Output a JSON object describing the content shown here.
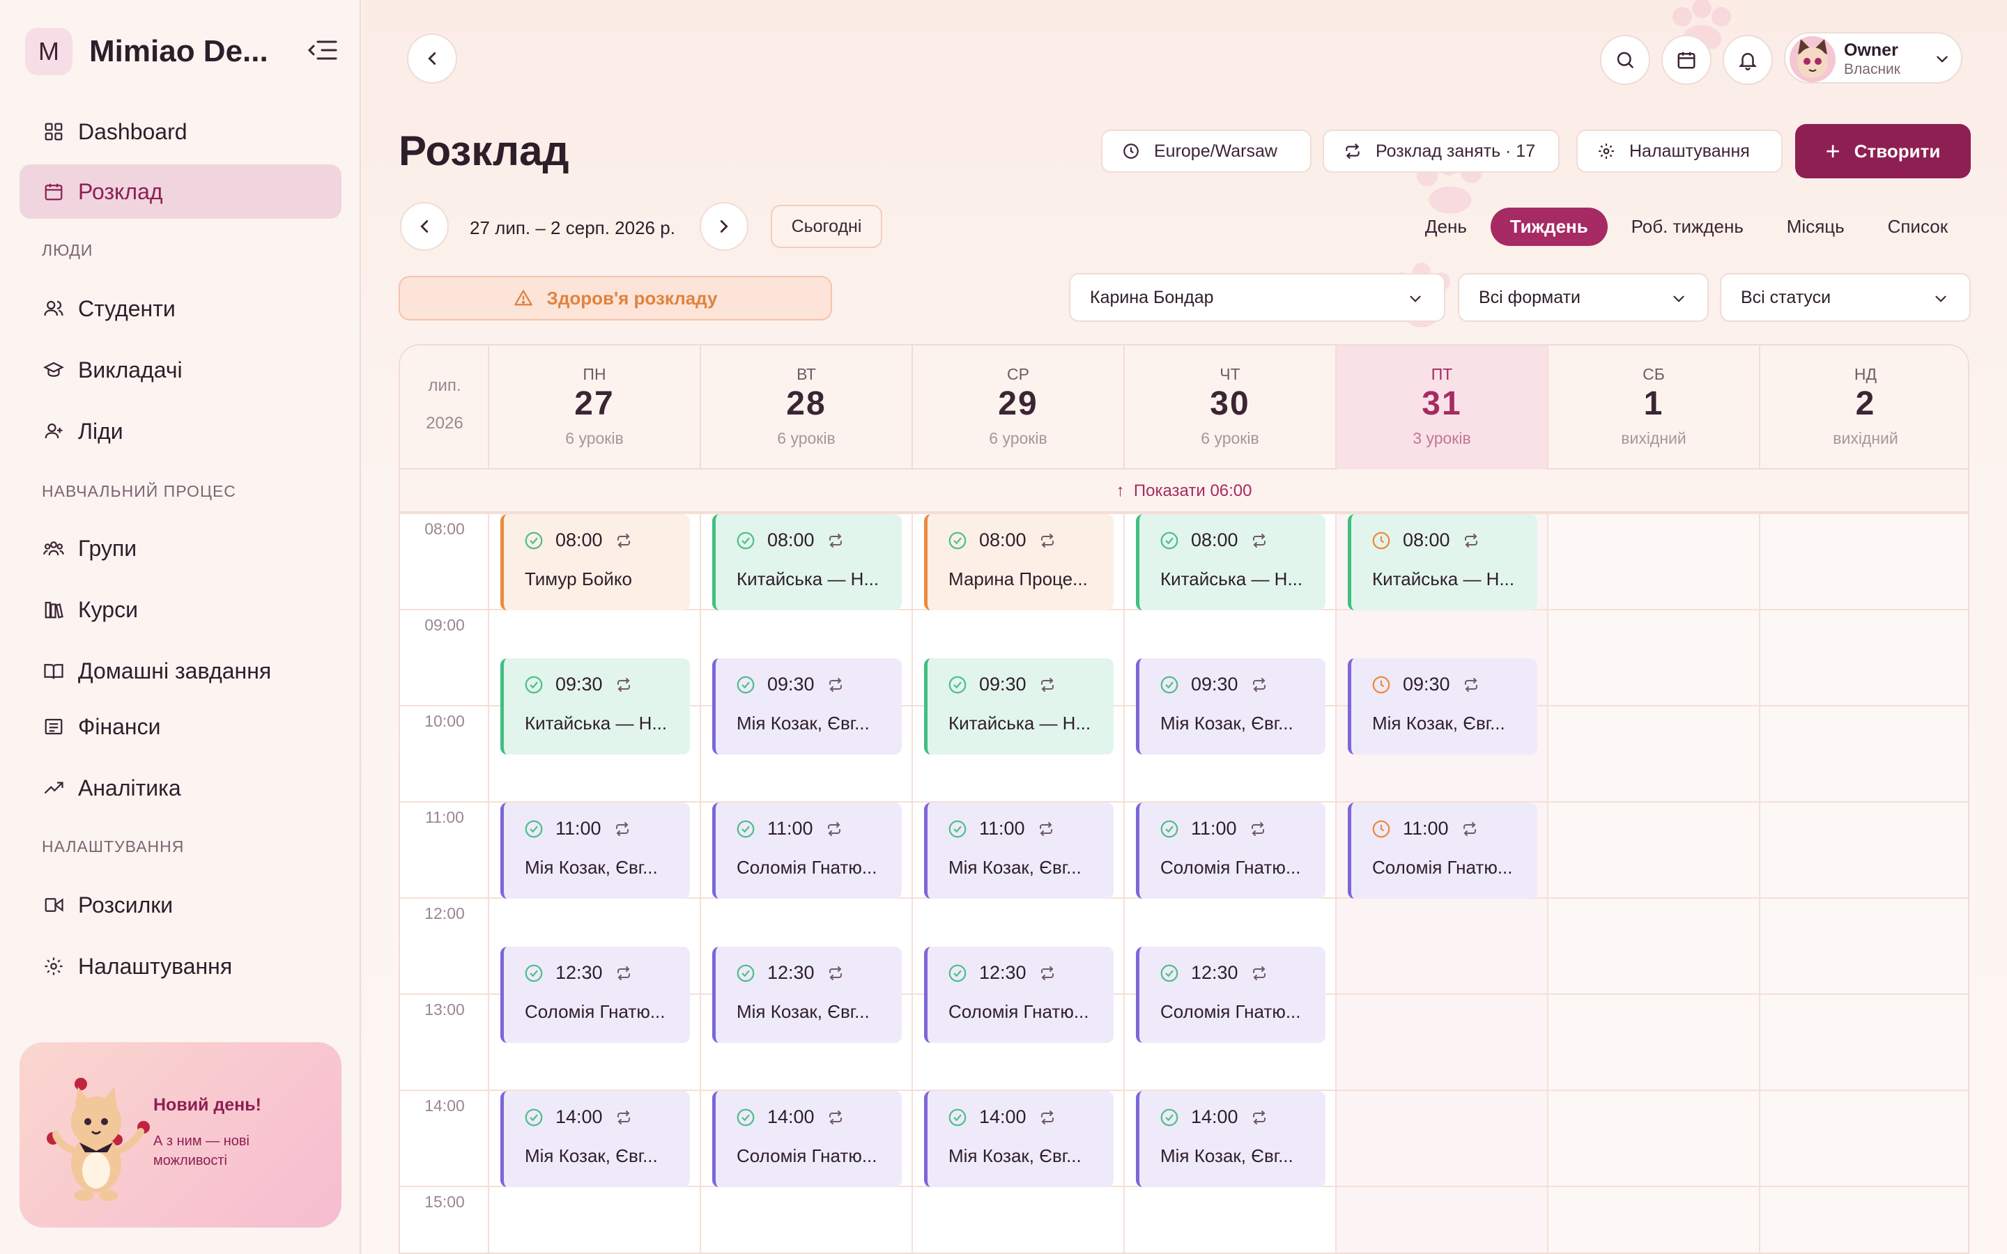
{
  "brand": {
    "logo_letter": "M",
    "name": "Mimiao De..."
  },
  "sidebar": {
    "items": [
      {
        "label": "Dashboard",
        "icon": "grid-icon"
      },
      {
        "label": "Розклад",
        "icon": "calendar-icon",
        "active": true
      },
      {
        "label": "Студенти",
        "icon": "users-icon"
      },
      {
        "label": "Викладачі",
        "icon": "graduation-cap-icon"
      },
      {
        "label": "Ліди",
        "icon": "user-plus-icon"
      },
      {
        "label": "Групи",
        "icon": "group-icon"
      },
      {
        "label": "Курси",
        "icon": "books-icon"
      },
      {
        "label": "Домашні завдання",
        "icon": "book-open-icon"
      },
      {
        "label": "Фінанси",
        "icon": "receipt-icon"
      },
      {
        "label": "Аналітика",
        "icon": "trend-up-icon"
      },
      {
        "label": "Розсилки",
        "icon": "send-icon"
      },
      {
        "label": "Налаштування",
        "icon": "gear-icon"
      }
    ],
    "sections": {
      "people": "ЛЮДИ",
      "learning": "НАВЧАЛЬНИЙ ПРОЦЕС",
      "settings": "НАЛАШТУВАННЯ"
    },
    "promo": {
      "title": "Новий день!",
      "text": "А з ним — нові можливості"
    }
  },
  "header": {
    "user": {
      "name": "Owner",
      "role": "Власник"
    }
  },
  "page": {
    "title": "Розклад",
    "timezone": "Europe/Warsaw",
    "schedule_label": "Розклад занять · 17",
    "settings_label": "Налаштування",
    "create_label": "Створити",
    "date_range": "27 лип. – 2 серп. 2026 р.",
    "today_label": "Сьогодні",
    "views": [
      "День",
      "Тиждень",
      "Роб. тиждень",
      "Місяць",
      "Список"
    ],
    "active_view": "Тиждень",
    "health_label": "Здоров'я розкладу",
    "filters": {
      "teacher": "Карина Бондар",
      "format": "Всі формати",
      "status": "Всі статуси"
    }
  },
  "calendar": {
    "month": "лип.",
    "year": "2026",
    "show_earlier": "Показати 06:00",
    "days": [
      {
        "name": "ПН",
        "date": "27",
        "count": "6 уроків"
      },
      {
        "name": "ВТ",
        "date": "28",
        "count": "6 уроків"
      },
      {
        "name": "СР",
        "date": "29",
        "count": "6 уроків"
      },
      {
        "name": "ЧТ",
        "date": "30",
        "count": "6 уроків"
      },
      {
        "name": "ПТ",
        "date": "31",
        "count": "3 уроків",
        "today": true
      },
      {
        "name": "СБ",
        "date": "1",
        "count": "вихідний"
      },
      {
        "name": "НД",
        "date": "2",
        "count": "вихідний"
      }
    ],
    "hours": [
      "08:00",
      "09:00",
      "10:00",
      "11:00",
      "12:00",
      "13:00",
      "14:00",
      "15:00"
    ],
    "events": [
      {
        "day": 0,
        "time": "08:00",
        "title": "Тимур Бойко",
        "color": "orange",
        "status": "done"
      },
      {
        "day": 1,
        "time": "08:00",
        "title": "Китайська — Н...",
        "color": "green",
        "status": "done"
      },
      {
        "day": 2,
        "time": "08:00",
        "title": "Марина Проце...",
        "color": "orange",
        "status": "done"
      },
      {
        "day": 3,
        "time": "08:00",
        "title": "Китайська — Н...",
        "color": "green",
        "status": "done"
      },
      {
        "day": 4,
        "time": "08:00",
        "title": "Китайська — Н...",
        "color": "green",
        "status": "pending"
      },
      {
        "day": 0,
        "time": "09:30",
        "title": "Китайська — Н...",
        "color": "green",
        "status": "done"
      },
      {
        "day": 1,
        "time": "09:30",
        "title": "Мія Козак, Євг...",
        "color": "purple",
        "status": "done"
      },
      {
        "day": 2,
        "time": "09:30",
        "title": "Китайська — Н...",
        "color": "green",
        "status": "done"
      },
      {
        "day": 3,
        "time": "09:30",
        "title": "Мія Козак, Євг...",
        "color": "purple",
        "status": "done"
      },
      {
        "day": 4,
        "time": "09:30",
        "title": "Мія Козак, Євг...",
        "color": "purple",
        "status": "pending"
      },
      {
        "day": 0,
        "time": "11:00",
        "title": "Мія Козак, Євг...",
        "color": "purple",
        "status": "done"
      },
      {
        "day": 1,
        "time": "11:00",
        "title": "Соломія Гнатю...",
        "color": "purple",
        "status": "done"
      },
      {
        "day": 2,
        "time": "11:00",
        "title": "Мія Козак, Євг...",
        "color": "purple",
        "status": "done"
      },
      {
        "day": 3,
        "time": "11:00",
        "title": "Соломія Гнатю...",
        "color": "purple",
        "status": "done"
      },
      {
        "day": 4,
        "time": "11:00",
        "title": "Соломія Гнатю...",
        "color": "purple",
        "status": "pending"
      },
      {
        "day": 0,
        "time": "12:30",
        "title": "Соломія Гнатю...",
        "color": "purple",
        "status": "done"
      },
      {
        "day": 1,
        "time": "12:30",
        "title": "Мія Козак, Євг...",
        "color": "purple",
        "status": "done"
      },
      {
        "day": 2,
        "time": "12:30",
        "title": "Соломія Гнатю...",
        "color": "purple",
        "status": "done"
      },
      {
        "day": 3,
        "time": "12:30",
        "title": "Соломія Гнатю...",
        "color": "purple",
        "status": "done"
      },
      {
        "day": 0,
        "time": "14:00",
        "title": "Мія Козак, Євг...",
        "color": "purple",
        "status": "done"
      },
      {
        "day": 1,
        "time": "14:00",
        "title": "Соломія Гнатю...",
        "color": "purple",
        "status": "done"
      },
      {
        "day": 2,
        "time": "14:00",
        "title": "Мія Козак, Євг...",
        "color": "purple",
        "status": "done"
      },
      {
        "day": 3,
        "time": "14:00",
        "title": "Мія Козак, Євг...",
        "color": "purple",
        "status": "done"
      }
    ]
  },
  "colors": {
    "accent": "#8e1f52",
    "accent_light": "#a62a63",
    "purple": "#7d66d8",
    "green": "#3fbf81",
    "orange": "#ec8a3e",
    "warning": "#e0833f"
  }
}
